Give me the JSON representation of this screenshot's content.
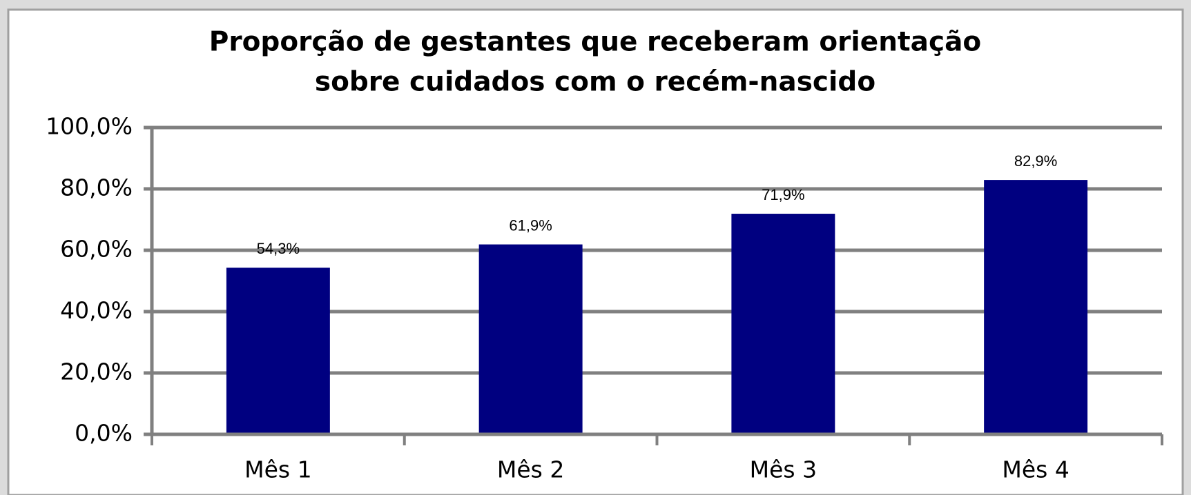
{
  "chart_data": {
    "type": "bar",
    "title": [
      "Proporção de gestantes que receberam orientação",
      "sobre cuidados com o recém-nascido"
    ],
    "categories": [
      "Mês 1",
      "Mês 2",
      "Mês 3",
      "Mês 4"
    ],
    "values": [
      54.3,
      61.9,
      71.9,
      82.9
    ],
    "value_labels": [
      "54,3%",
      "61,9%",
      "71,9%",
      "82,9%"
    ],
    "color": "#000080",
    "ylim": [
      0,
      100
    ],
    "yticks": [
      {
        "value": 0,
        "label": "0,0%"
      },
      {
        "value": 20,
        "label": "20,0%"
      },
      {
        "value": 40,
        "label": "40,0%"
      },
      {
        "value": 60,
        "label": "60,0%"
      },
      {
        "value": 80,
        "label": "80,0%"
      },
      {
        "value": 100,
        "label": "100,0%"
      }
    ],
    "grid": true
  }
}
